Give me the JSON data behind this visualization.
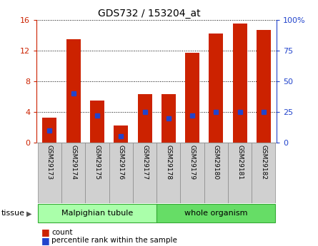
{
  "title": "GDS732 / 153204_at",
  "samples": [
    "GSM29173",
    "GSM29174",
    "GSM29175",
    "GSM29176",
    "GSM29177",
    "GSM29178",
    "GSM29179",
    "GSM29180",
    "GSM29181",
    "GSM29182"
  ],
  "counts": [
    3.3,
    13.5,
    5.5,
    2.2,
    6.3,
    6.3,
    11.7,
    14.2,
    15.5,
    14.7
  ],
  "percentiles": [
    10,
    40,
    22,
    5,
    25,
    20,
    22,
    25,
    25,
    25
  ],
  "bar_color": "#cc2200",
  "marker_color": "#2244cc",
  "ylim_left": [
    0,
    16
  ],
  "ylim_right": [
    0,
    100
  ],
  "yticks_left": [
    0,
    4,
    8,
    12,
    16
  ],
  "yticks_right": [
    0,
    25,
    50,
    75,
    100
  ],
  "ytick_labels_right": [
    "0",
    "25",
    "50",
    "75",
    "100%"
  ],
  "tissue_groups": [
    {
      "label": "Malpighian tubule",
      "start": 0,
      "end": 5,
      "color": "#aaffaa"
    },
    {
      "label": "whole organism",
      "start": 5,
      "end": 10,
      "color": "#66dd66"
    }
  ],
  "tissue_label": "tissue",
  "legend_count_label": "count",
  "legend_pct_label": "percentile rank within the sample",
  "left_axis_color": "#cc2200",
  "right_axis_color": "#2244cc",
  "bar_width": 0.6,
  "xlim": [
    -0.55,
    9.55
  ]
}
